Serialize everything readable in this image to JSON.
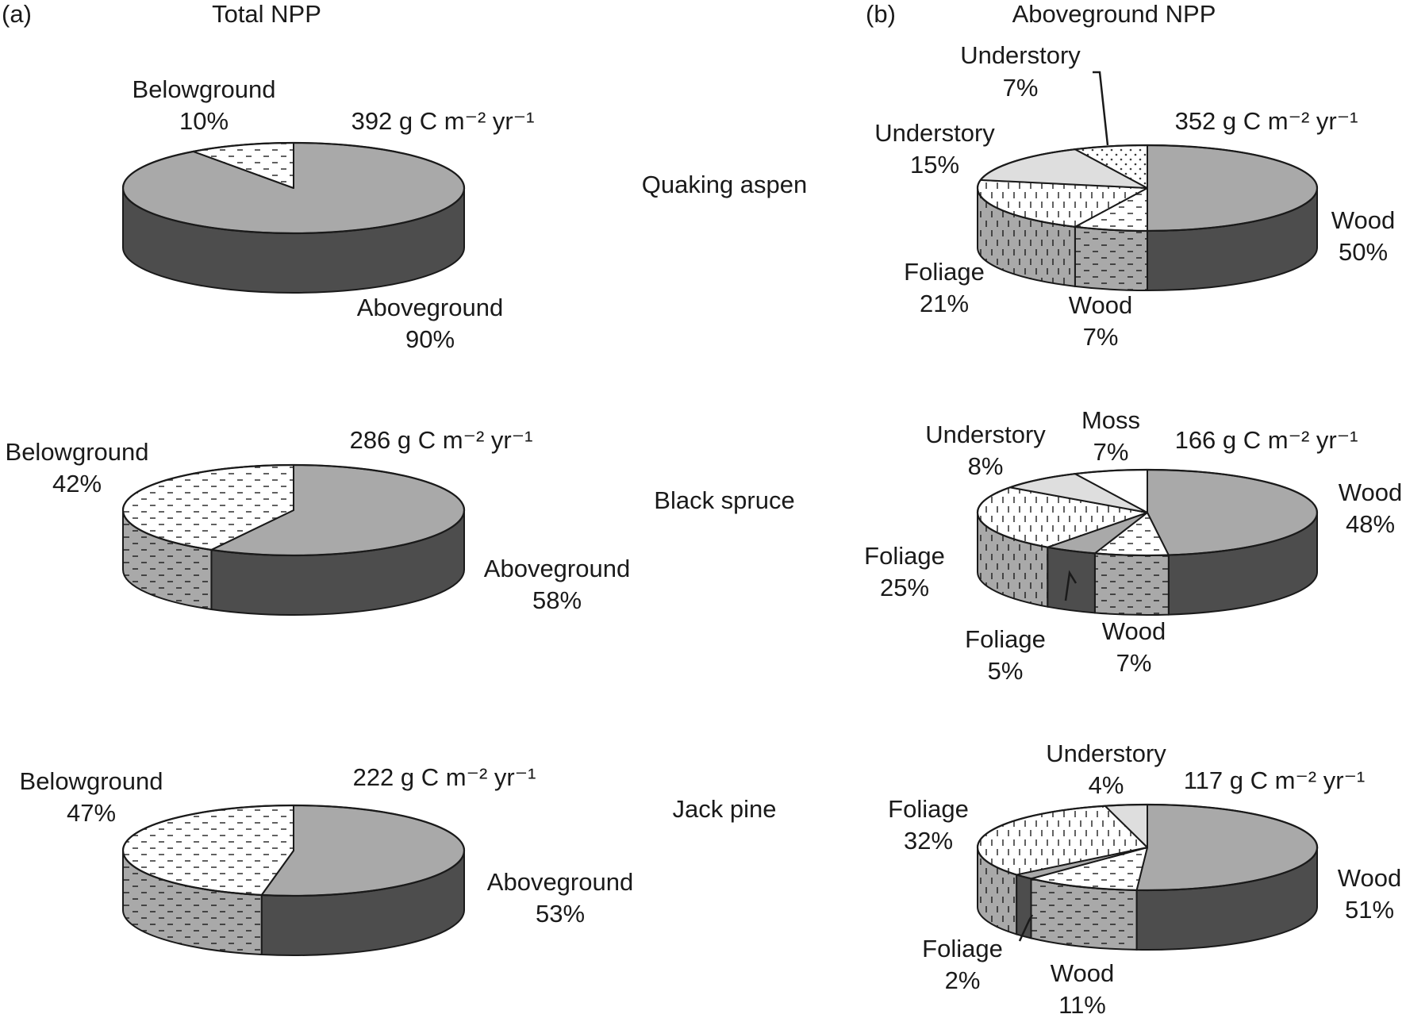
{
  "panels": {
    "a": {
      "tag": "(a)",
      "title": "Total NPP"
    },
    "b": {
      "tag": "(b)",
      "title": "Aboveground NPP"
    }
  },
  "species": [
    "Quaking aspen",
    "Black spruce",
    "Jack pine"
  ],
  "colors": {
    "top": "#a9a9a9",
    "side": "#4d4d4d",
    "understory": "#dedede",
    "outline": "#1a1a1a",
    "hatch": "#3a3a3a"
  },
  "chart_data": [
    {
      "type": "pie",
      "panel": "a",
      "title": "Total NPP",
      "species": "Quaking aspen",
      "total": "392 g C m⁻² yr⁻¹",
      "slices": [
        {
          "name": "Aboveground",
          "value": 90,
          "label": "90%",
          "fill": "solid"
        },
        {
          "name": "Belowground",
          "value": 10,
          "label": "10%",
          "fill": "dash"
        }
      ]
    },
    {
      "type": "pie",
      "panel": "a",
      "title": "Total NPP",
      "species": "Black spruce",
      "total": "286 g C m⁻² yr⁻¹",
      "slices": [
        {
          "name": "Aboveground",
          "value": 58,
          "label": "58%",
          "fill": "solid"
        },
        {
          "name": "Belowground",
          "value": 42,
          "label": "42%",
          "fill": "dash"
        }
      ]
    },
    {
      "type": "pie",
      "panel": "a",
      "title": "Total NPP",
      "species": "Jack pine",
      "total": "222 g C m⁻² yr⁻¹",
      "slices": [
        {
          "name": "Aboveground",
          "value": 53,
          "label": "53%",
          "fill": "solid"
        },
        {
          "name": "Belowground",
          "value": 47,
          "label": "47%",
          "fill": "dash"
        }
      ]
    },
    {
      "type": "pie",
      "panel": "b",
      "title": "Aboveground NPP",
      "species": "Quaking aspen",
      "total": "352 g C m⁻² yr⁻¹",
      "slices": [
        {
          "name": "Wood",
          "value": 50,
          "label": "50%",
          "fill": "solid"
        },
        {
          "name": "Wood",
          "value": 7,
          "label": "7%",
          "fill": "dash"
        },
        {
          "name": "Foliage",
          "value": 21,
          "label": "21%",
          "fill": "vline"
        },
        {
          "name": "Understory",
          "value": 15,
          "label": "15%",
          "fill": "light"
        },
        {
          "name": "Understory",
          "value": 7,
          "label": "7%",
          "fill": "dots"
        }
      ]
    },
    {
      "type": "pie",
      "panel": "b",
      "title": "Aboveground NPP",
      "species": "Black spruce",
      "total": "166 g C m⁻² yr⁻¹",
      "slices": [
        {
          "name": "Wood",
          "value": 48,
          "label": "48%",
          "fill": "solid"
        },
        {
          "name": "Wood",
          "value": 7,
          "label": "7%",
          "fill": "dash"
        },
        {
          "name": "Foliage",
          "value": 5,
          "label": "5%",
          "fill": "solid"
        },
        {
          "name": "Foliage",
          "value": 25,
          "label": "25%",
          "fill": "vline"
        },
        {
          "name": "Understory",
          "value": 8,
          "label": "8%",
          "fill": "light"
        },
        {
          "name": "Moss",
          "value": 7,
          "label": "7%",
          "fill": "white"
        }
      ]
    },
    {
      "type": "pie",
      "panel": "b",
      "title": "Aboveground NPP",
      "species": "Jack pine",
      "total": "117 g C m⁻² yr⁻¹",
      "slices": [
        {
          "name": "Wood",
          "value": 51,
          "label": "51%",
          "fill": "solid"
        },
        {
          "name": "Wood",
          "value": 11,
          "label": "11%",
          "fill": "dash"
        },
        {
          "name": "Foliage",
          "value": 2,
          "label": "2%",
          "fill": "solid"
        },
        {
          "name": "Foliage",
          "value": 32,
          "label": "32%",
          "fill": "vline"
        },
        {
          "name": "Understory",
          "value": 4,
          "label": "4%",
          "fill": "light"
        }
      ]
    }
  ]
}
